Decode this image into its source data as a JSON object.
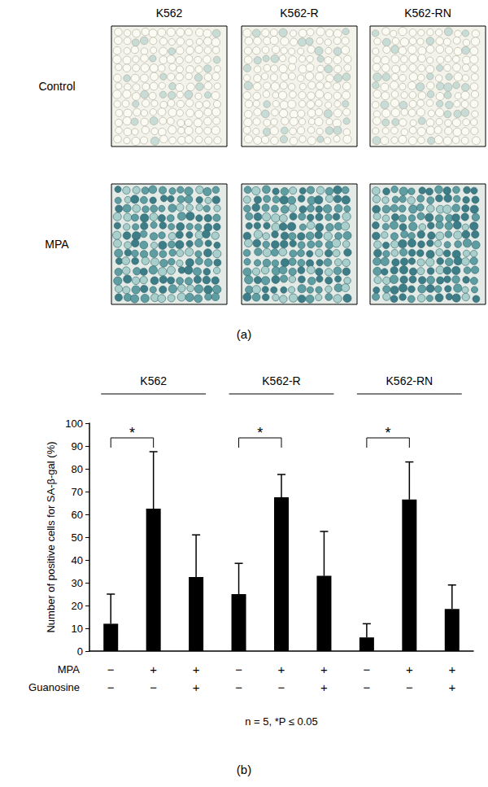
{
  "panel_a": {
    "columns": [
      "K562",
      "K562-R",
      "K562-RN"
    ],
    "rows": [
      "Control",
      "MPA"
    ],
    "label": "(a)"
  },
  "chart_data": {
    "type": "bar",
    "label": "(b)",
    "categories": [
      null,
      null,
      null,
      null,
      null,
      null,
      null,
      null,
      null
    ],
    "values": [
      12,
      62.5,
      32.5,
      25,
      67.5,
      33,
      6,
      66.5,
      18.5
    ],
    "errors": [
      13,
      25,
      18.5,
      13.5,
      10,
      19.5,
      6,
      16.5,
      10.5
    ],
    "color": "#000000",
    "ylabel": "Number of positive cells for SA-β-gal (%)",
    "ylim": [
      0,
      100
    ],
    "yticks": [
      0,
      10,
      20,
      30,
      40,
      50,
      60,
      70,
      80,
      90,
      100
    ],
    "grid": false,
    "groups": [
      {
        "label": "K562",
        "from": 0,
        "to": 2
      },
      {
        "label": "K562-R",
        "from": 3,
        "to": 5
      },
      {
        "label": "K562-RN",
        "from": 6,
        "to": 8
      }
    ],
    "treatments": [
      {
        "name": "MPA",
        "signs": [
          "−",
          "+",
          "+",
          "−",
          "+",
          "+",
          "−",
          "+",
          "+"
        ]
      },
      {
        "name": "Guanosine",
        "signs": [
          "−",
          "−",
          "+",
          "−",
          "−",
          "+",
          "−",
          "−",
          "+"
        ]
      }
    ],
    "significance": [
      {
        "from": 0,
        "to": 1,
        "label": "*"
      },
      {
        "from": 3,
        "to": 4,
        "label": "*"
      },
      {
        "from": 6,
        "to": 7,
        "label": "*"
      }
    ],
    "note": "n = 5, *P ≤ 0.05"
  }
}
